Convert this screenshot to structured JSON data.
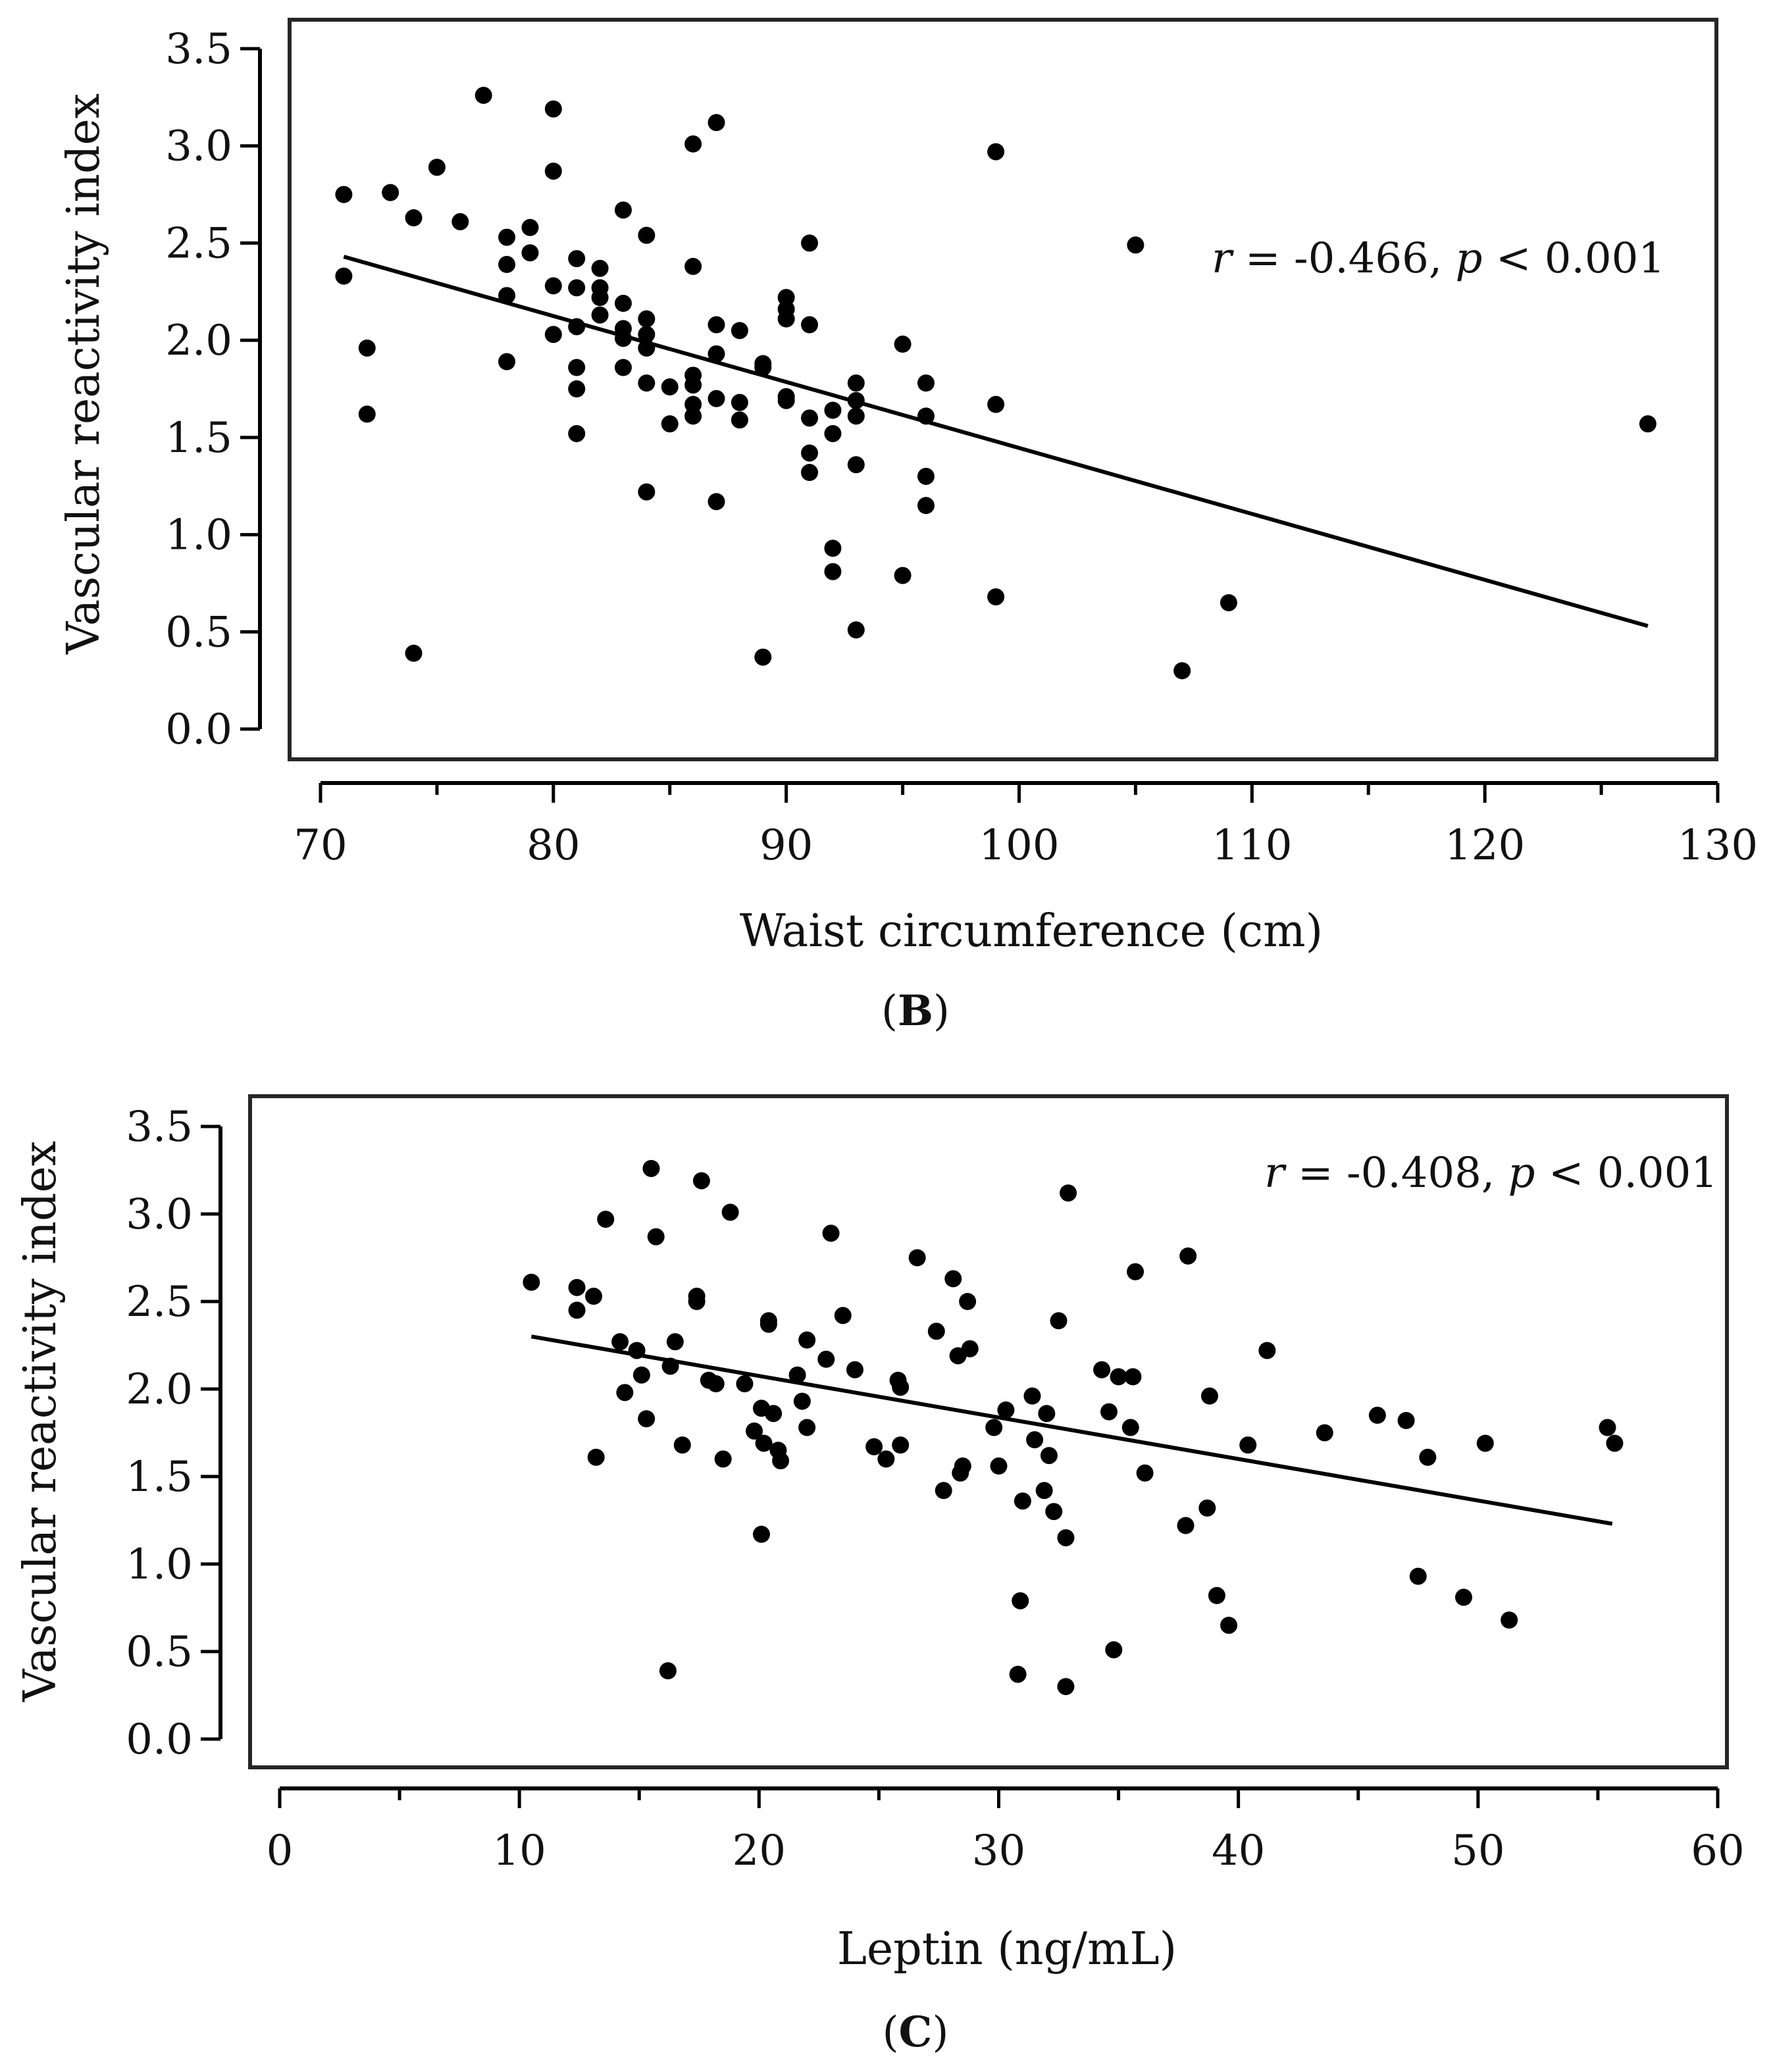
{
  "chart_data": [
    {
      "id": "B",
      "type": "scatter",
      "panel_label": "B",
      "xlabel": "Waist circumference (cm)",
      "ylabel": "Vascular reactivity index",
      "xlim": [
        70,
        130
      ],
      "ylim": [
        0.0,
        3.5
      ],
      "x_ticks": [
        "70",
        "80",
        "90",
        "100",
        "110",
        "120",
        "130"
      ],
      "x_tick_values": [
        70,
        80,
        90,
        100,
        110,
        120,
        130
      ],
      "x_minor_ticks": [
        75,
        85,
        95,
        105,
        115,
        125
      ],
      "y_ticks": [
        "0.0",
        "0.5",
        "1.0",
        "1.5",
        "2.0",
        "2.5",
        "3.0",
        "3.5"
      ],
      "y_tick_values": [
        0.0,
        0.5,
        1.0,
        1.5,
        2.0,
        2.5,
        3.0,
        3.5
      ],
      "annotation": {
        "r_symbol": "r",
        "r_text": " = -0.466, ",
        "p_symbol": "p",
        "p_text": " < 0.001"
      },
      "trend_line": {
        "x": [
          71,
          127
        ],
        "y": [
          2.43,
          0.53
        ]
      },
      "points": [
        [
          71,
          2.75
        ],
        [
          71,
          2.33
        ],
        [
          72,
          1.96
        ],
        [
          72,
          1.62
        ],
        [
          73,
          2.76
        ],
        [
          74,
          2.63
        ],
        [
          74,
          0.39
        ],
        [
          75,
          2.89
        ],
        [
          76,
          2.61
        ],
        [
          77,
          3.26
        ],
        [
          78,
          2.53
        ],
        [
          78,
          2.39
        ],
        [
          78,
          2.23
        ],
        [
          78,
          1.89
        ],
        [
          79,
          2.58
        ],
        [
          79,
          2.45
        ],
        [
          80,
          3.19
        ],
        [
          80,
          2.87
        ],
        [
          80,
          2.28
        ],
        [
          80,
          2.03
        ],
        [
          81,
          2.42
        ],
        [
          81,
          2.27
        ],
        [
          81,
          2.07
        ],
        [
          81,
          1.86
        ],
        [
          81,
          1.75
        ],
        [
          81,
          1.52
        ],
        [
          82,
          2.37
        ],
        [
          82,
          2.27
        ],
        [
          82,
          2.22
        ],
        [
          82,
          2.13
        ],
        [
          83,
          2.67
        ],
        [
          83,
          2.19
        ],
        [
          83,
          2.06
        ],
        [
          83,
          2.01
        ],
        [
          83,
          1.86
        ],
        [
          84,
          2.54
        ],
        [
          84,
          2.11
        ],
        [
          84,
          2.03
        ],
        [
          84,
          1.96
        ],
        [
          84,
          1.78
        ],
        [
          84,
          1.22
        ],
        [
          85,
          1.76
        ],
        [
          85,
          1.57
        ],
        [
          86,
          3.01
        ],
        [
          86,
          2.38
        ],
        [
          86,
          1.82
        ],
        [
          86,
          1.77
        ],
        [
          86,
          1.67
        ],
        [
          86,
          1.61
        ],
        [
          87,
          3.12
        ],
        [
          87,
          2.08
        ],
        [
          87,
          1.93
        ],
        [
          87,
          1.7
        ],
        [
          87,
          1.17
        ],
        [
          88,
          2.05
        ],
        [
          88,
          1.68
        ],
        [
          88,
          1.59
        ],
        [
          89,
          1.88
        ],
        [
          89,
          1.86
        ],
        [
          89,
          0.37
        ],
        [
          90,
          2.22
        ],
        [
          90,
          2.16
        ],
        [
          90,
          2.11
        ],
        [
          90,
          1.71
        ],
        [
          90,
          1.69
        ],
        [
          91,
          2.5
        ],
        [
          91,
          2.08
        ],
        [
          91,
          1.6
        ],
        [
          91,
          1.42
        ],
        [
          91,
          1.32
        ],
        [
          92,
          1.64
        ],
        [
          92,
          1.52
        ],
        [
          92,
          0.93
        ],
        [
          92,
          0.81
        ],
        [
          93,
          1.78
        ],
        [
          93,
          1.69
        ],
        [
          93,
          1.61
        ],
        [
          93,
          1.36
        ],
        [
          93,
          0.51
        ],
        [
          95,
          1.98
        ],
        [
          95,
          0.79
        ],
        [
          96,
          1.78
        ],
        [
          96,
          1.61
        ],
        [
          96,
          1.3
        ],
        [
          96,
          1.15
        ],
        [
          99,
          2.97
        ],
        [
          99,
          1.67
        ],
        [
          99,
          0.68
        ],
        [
          105,
          2.49
        ],
        [
          107,
          0.3
        ],
        [
          109,
          0.65
        ],
        [
          127,
          1.57
        ]
      ]
    },
    {
      "id": "C",
      "type": "scatter",
      "panel_label": "C",
      "xlabel": "Leptin (ng/mL)",
      "ylabel": "Vascular reactivity index",
      "xlim": [
        0,
        60
      ],
      "ylim": [
        0.0,
        3.5
      ],
      "x_ticks": [
        "0",
        "10",
        "20",
        "30",
        "40",
        "50",
        "60"
      ],
      "x_tick_values": [
        0,
        10,
        20,
        30,
        40,
        50,
        60
      ],
      "x_minor_ticks": [
        5,
        15,
        25,
        35,
        45,
        55
      ],
      "y_ticks": [
        "0.0",
        "0.5",
        "1.0",
        "1.5",
        "2.0",
        "2.5",
        "3.0",
        "3.5"
      ],
      "y_tick_values": [
        0.0,
        0.5,
        1.0,
        1.5,
        2.0,
        2.5,
        3.0,
        3.5
      ],
      "annotation": {
        "r_symbol": "r",
        "r_text": " = -0.408, ",
        "p_symbol": "p",
        "p_text": " < 0.001"
      },
      "trend_line": {
        "x": [
          10.5,
          55.6
        ],
        "y": [
          2.3,
          1.23
        ]
      },
      "points": [
        [
          10.5,
          2.61
        ],
        [
          12.4,
          2.58
        ],
        [
          12.4,
          2.45
        ],
        [
          13.1,
          2.53
        ],
        [
          13.2,
          1.61
        ],
        [
          13.6,
          2.97
        ],
        [
          14.2,
          2.27
        ],
        [
          14.4,
          1.98
        ],
        [
          14.9,
          2.22
        ],
        [
          15.1,
          2.08
        ],
        [
          15.3,
          1.83
        ],
        [
          15.5,
          3.26
        ],
        [
          15.7,
          2.87
        ],
        [
          16.2,
          0.39
        ],
        [
          16.3,
          2.13
        ],
        [
          16.5,
          2.27
        ],
        [
          16.8,
          1.68
        ],
        [
          17.4,
          2.53
        ],
        [
          17.4,
          2.5
        ],
        [
          17.6,
          3.19
        ],
        [
          17.9,
          2.05
        ],
        [
          18.2,
          2.03
        ],
        [
          18.5,
          1.6
        ],
        [
          18.8,
          3.01
        ],
        [
          19.4,
          2.03
        ],
        [
          19.8,
          1.76
        ],
        [
          20.1,
          1.89
        ],
        [
          20.1,
          1.17
        ],
        [
          20.2,
          1.69
        ],
        [
          20.4,
          2.39
        ],
        [
          20.4,
          2.37
        ],
        [
          20.6,
          1.86
        ],
        [
          20.8,
          1.65
        ],
        [
          20.9,
          1.59
        ],
        [
          21.6,
          2.08
        ],
        [
          21.8,
          1.93
        ],
        [
          22.0,
          2.28
        ],
        [
          22.0,
          1.78
        ],
        [
          22.8,
          2.17
        ],
        [
          23.0,
          2.89
        ],
        [
          23.5,
          2.42
        ],
        [
          24.0,
          2.11
        ],
        [
          24.8,
          1.67
        ],
        [
          25.3,
          1.6
        ],
        [
          25.8,
          2.05
        ],
        [
          25.9,
          1.68
        ],
        [
          25.9,
          2.01
        ],
        [
          26.6,
          2.75
        ],
        [
          27.4,
          2.33
        ],
        [
          27.7,
          1.42
        ],
        [
          28.1,
          2.63
        ],
        [
          28.3,
          2.19
        ],
        [
          28.4,
          1.52
        ],
        [
          28.5,
          1.56
        ],
        [
          28.7,
          2.5
        ],
        [
          28.8,
          2.23
        ],
        [
          29.8,
          1.78
        ],
        [
          30.0,
          1.56
        ],
        [
          30.3,
          1.88
        ],
        [
          30.8,
          0.37
        ],
        [
          30.9,
          0.79
        ],
        [
          31.0,
          1.36
        ],
        [
          31.4,
          1.96
        ],
        [
          31.5,
          1.71
        ],
        [
          31.9,
          1.42
        ],
        [
          32.0,
          1.86
        ],
        [
          32.1,
          1.62
        ],
        [
          32.3,
          1.3
        ],
        [
          32.5,
          2.39
        ],
        [
          32.8,
          1.15
        ],
        [
          32.8,
          0.3
        ],
        [
          32.9,
          3.12
        ],
        [
          34.3,
          2.11
        ],
        [
          34.6,
          1.87
        ],
        [
          34.8,
          0.51
        ],
        [
          35.0,
          2.07
        ],
        [
          35.5,
          1.78
        ],
        [
          35.6,
          2.07
        ],
        [
          35.7,
          2.67
        ],
        [
          36.1,
          1.52
        ],
        [
          37.8,
          1.22
        ],
        [
          37.9,
          2.76
        ],
        [
          38.7,
          1.32
        ],
        [
          38.8,
          1.96
        ],
        [
          39.1,
          0.82
        ],
        [
          39.6,
          0.65
        ],
        [
          40.4,
          1.68
        ],
        [
          41.2,
          2.22
        ],
        [
          43.6,
          1.75
        ],
        [
          45.8,
          1.85
        ],
        [
          47.0,
          1.82
        ],
        [
          47.5,
          0.93
        ],
        [
          47.9,
          1.61
        ],
        [
          49.4,
          0.81
        ],
        [
          50.3,
          1.69
        ],
        [
          51.3,
          0.68
        ],
        [
          55.4,
          1.78
        ],
        [
          55.7,
          1.69
        ]
      ]
    }
  ]
}
